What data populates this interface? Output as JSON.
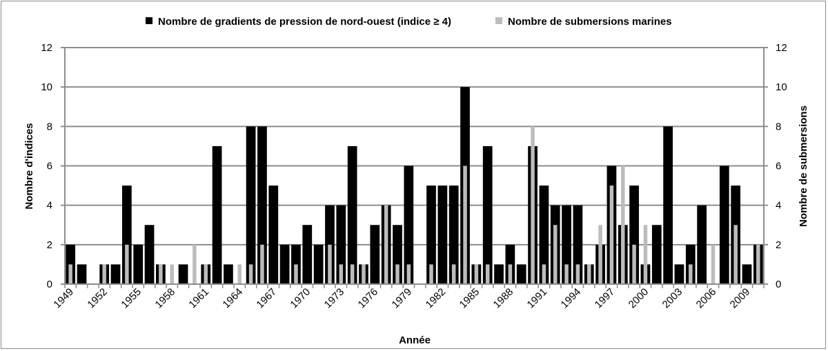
{
  "chart_data": {
    "type": "bar",
    "xlabel": "Année",
    "ylabel": "Nombre d'indices",
    "ylabel_right": "Nombre de submersions",
    "ylim": [
      0,
      12
    ],
    "yticks": [
      0,
      2,
      4,
      6,
      8,
      10,
      12
    ],
    "legend_position": "top",
    "grid": true,
    "categories": [
      "1949",
      "1950",
      "1951",
      "1952",
      "1953",
      "1954",
      "1955",
      "1956",
      "1957",
      "1958",
      "1959",
      "1960",
      "1961",
      "1962",
      "1963",
      "1964",
      "1965",
      "1966",
      "1967",
      "1968",
      "1969",
      "1970",
      "1971",
      "1972",
      "1973",
      "1974",
      "1975",
      "1976",
      "1977",
      "1978",
      "1979",
      "1980",
      "1981",
      "1982",
      "1983",
      "1984",
      "1985",
      "1986",
      "1987",
      "1988",
      "1989",
      "1990",
      "1991",
      "1992",
      "1993",
      "1994",
      "1995",
      "1996",
      "1997",
      "1998",
      "1999",
      "2000",
      "2001",
      "2002",
      "2003",
      "2004",
      "2005",
      "2006",
      "2007",
      "2008",
      "2009",
      "2010"
    ],
    "tick_labels": [
      "1949",
      "1952",
      "1955",
      "1958",
      "1961",
      "1964",
      "1967",
      "1970",
      "1973",
      "1976",
      "1979",
      "1982",
      "1985",
      "1988",
      "1991",
      "1994",
      "1997",
      "2000",
      "2003",
      "2006",
      "2009"
    ],
    "series": [
      {
        "name": "Nombre de gradients de pression de nord-ouest (indice ≥ 4)",
        "color": "#000000",
        "values": [
          2,
          1,
          0,
          1,
          1,
          5,
          2,
          3,
          1,
          0,
          1,
          0,
          1,
          7,
          1,
          0,
          8,
          8,
          5,
          2,
          2,
          3,
          2,
          4,
          4,
          7,
          1,
          3,
          4,
          3,
          6,
          0,
          5,
          5,
          5,
          10,
          1,
          7,
          1,
          2,
          1,
          7,
          5,
          4,
          4,
          4,
          1,
          2,
          6,
          3,
          5,
          1,
          3,
          8,
          1,
          2,
          4,
          0,
          6,
          5,
          1,
          2
        ]
      },
      {
        "name": "Nombre de submersions marines",
        "color": "#bcbcbc",
        "values": [
          1,
          0,
          0,
          1,
          0,
          2,
          0,
          0,
          1,
          1,
          0,
          2,
          1,
          0,
          0,
          1,
          1,
          2,
          0,
          0,
          1,
          0,
          0,
          2,
          1,
          1,
          1,
          0,
          4,
          1,
          1,
          0,
          1,
          0,
          1,
          6,
          1,
          1,
          0,
          1,
          0,
          8,
          1,
          3,
          1,
          1,
          1,
          3,
          5,
          6,
          2,
          3,
          0,
          0,
          0,
          1,
          0,
          2,
          0,
          3,
          0,
          2
        ]
      }
    ]
  }
}
